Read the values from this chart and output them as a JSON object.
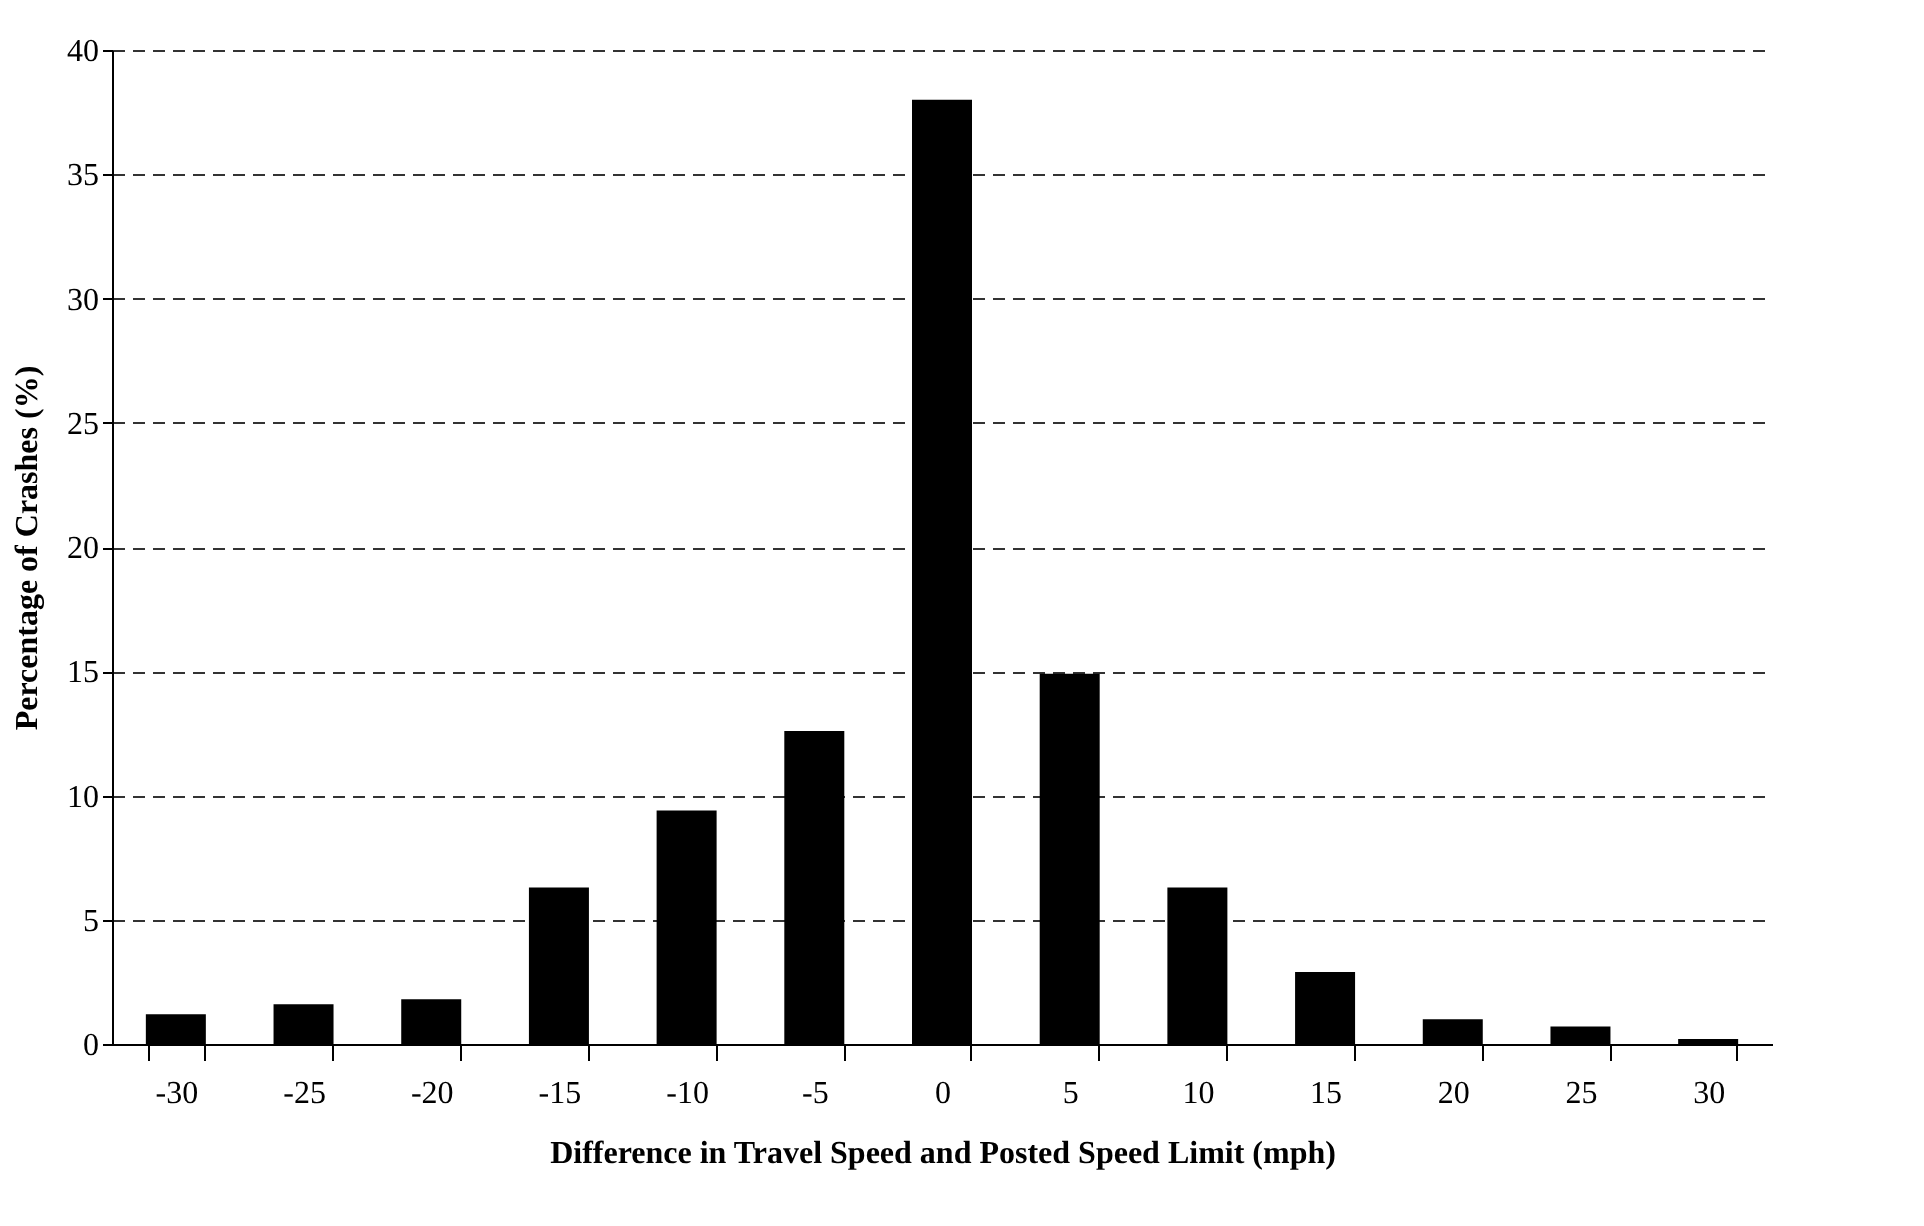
{
  "chart_data": {
    "type": "bar",
    "xlabel": "Difference in Travel Speed and Posted Speed Limit (mph)",
    "ylabel": "Percentage of Crashes (%)",
    "categories": [
      "-30",
      "-25",
      "-20",
      "-15",
      "-10",
      "-5",
      "0",
      "5",
      "10",
      "15",
      "20",
      "25",
      "30"
    ],
    "values": [
      1.2,
      1.6,
      1.8,
      6.3,
      9.4,
      12.6,
      38,
      14.9,
      6.3,
      2.9,
      1.0,
      0.7,
      0.2
    ],
    "color": "#000000",
    "ylim": [
      0,
      40
    ],
    "yticks": [
      0,
      5,
      10,
      15,
      20,
      25,
      30,
      35,
      40
    ],
    "grid": "y"
  }
}
